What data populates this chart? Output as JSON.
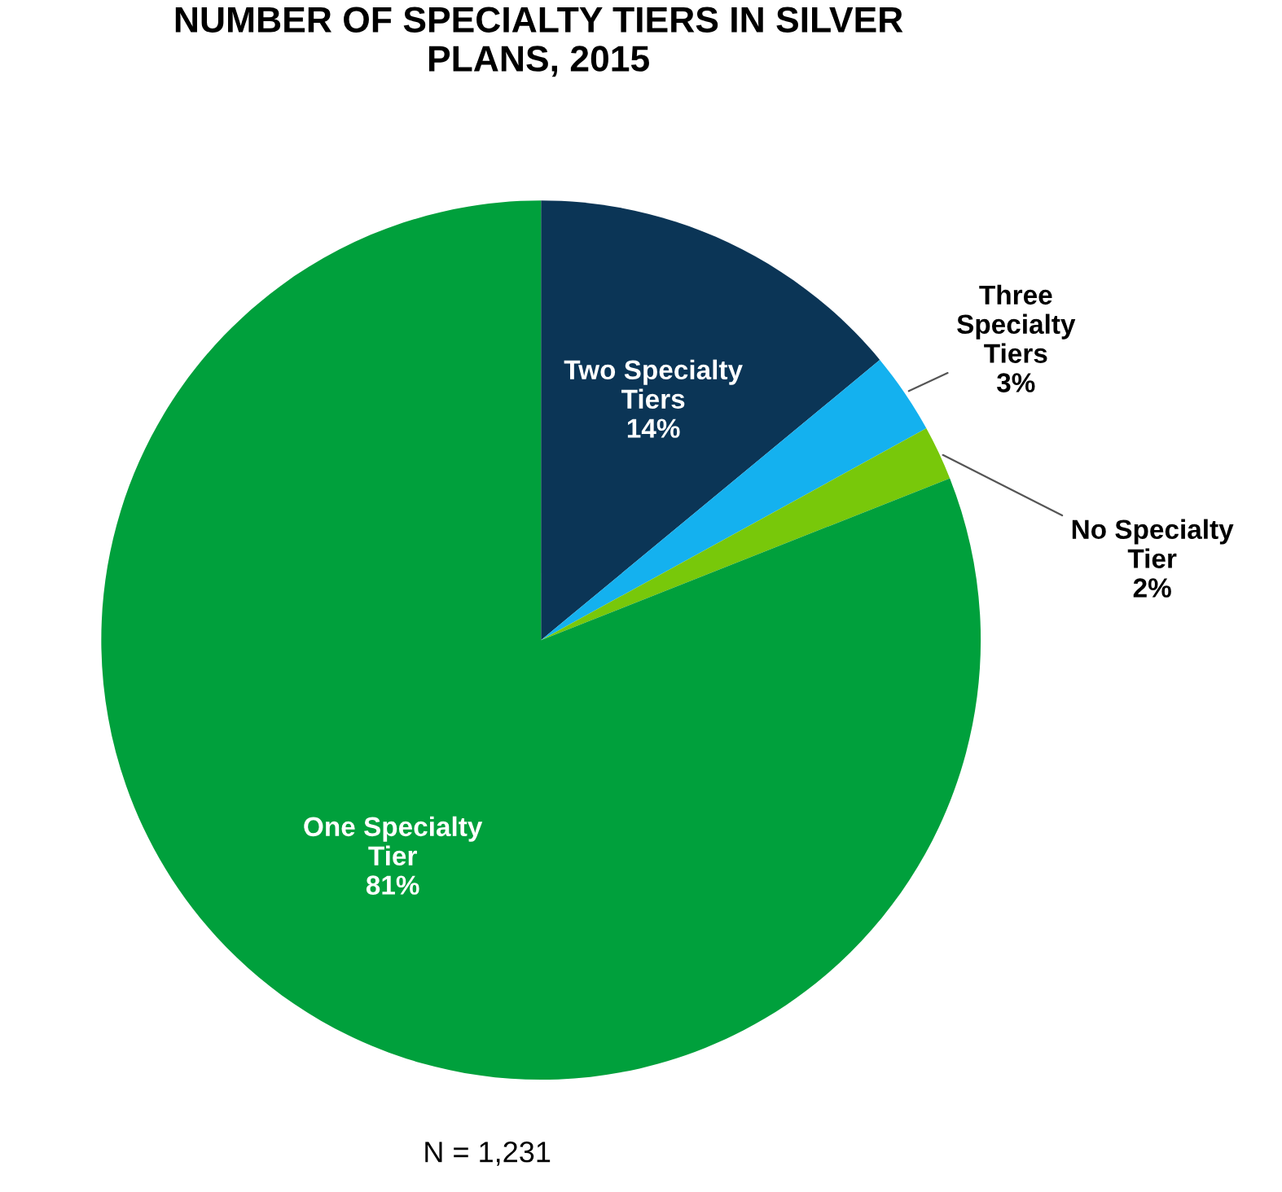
{
  "chart_data": {
    "type": "pie",
    "title": "NUMBER OF SPECIALTY TIERS IN SILVER PLANS, 2015",
    "categories": [
      "Two Specialty Tiers",
      "Three Specialty Tiers",
      "No Specialty Tier",
      "One Specialty Tier"
    ],
    "values": [
      14,
      3,
      2,
      81
    ],
    "value_labels": [
      "14%",
      "3%",
      "2%",
      "81%"
    ],
    "colors": [
      "#0b3556",
      "#14b1ef",
      "#78c80a",
      "#00a03c"
    ],
    "annotations": [
      "N = 1,231"
    ]
  }
}
